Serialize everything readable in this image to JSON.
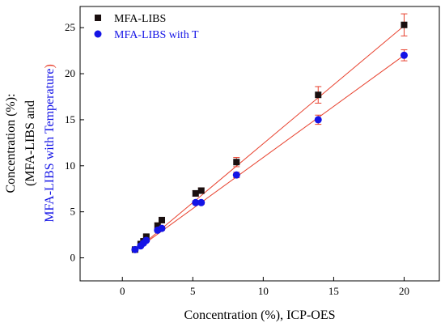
{
  "chart_data": {
    "type": "scatter",
    "xlabel": "Concentration (%), ICP-OES",
    "ylabel_lines": [
      "Concentration (%):",
      "(MFA-LIBS and",
      "MFA-LIBS with Temperature)"
    ],
    "xlim": [
      -3,
      22.5
    ],
    "ylim": [
      -2.5,
      27.3
    ],
    "xticks": [
      0,
      5,
      10,
      15,
      20
    ],
    "yticks": [
      0,
      5,
      10,
      15,
      20,
      25
    ],
    "grid": false,
    "legend": "top-left",
    "series": [
      {
        "name": "MFA-LIBS",
        "marker": "square",
        "color": "#1a0f0f",
        "x": [
          0.9,
          1.3,
          1.5,
          1.7,
          2.5,
          2.8,
          5.2,
          5.6,
          8.1,
          13.9,
          20.0
        ],
        "y": [
          0.9,
          1.5,
          1.8,
          2.3,
          3.5,
          4.1,
          7.0,
          7.3,
          10.4,
          17.7,
          25.3
        ],
        "err": [
          0.15,
          0.15,
          0.2,
          0.2,
          0.3,
          0.3,
          0.3,
          0.3,
          0.5,
          0.9,
          1.2
        ],
        "fit_color": "#e8422f",
        "fit_x": [
          0.9,
          20.0
        ],
        "fit_y": [
          0.75,
          25.2
        ]
      },
      {
        "name": "MFA-LIBS with T",
        "marker": "circle",
        "color": "#1414e6",
        "x": [
          0.9,
          1.3,
          1.5,
          1.7,
          2.5,
          2.8,
          5.2,
          5.6,
          8.1,
          13.9,
          20.0
        ],
        "y": [
          0.9,
          1.3,
          1.6,
          1.9,
          3.0,
          3.2,
          6.0,
          6.0,
          9.0,
          15.0,
          22.0
        ],
        "err": [
          0.1,
          0.1,
          0.15,
          0.15,
          0.2,
          0.2,
          0.2,
          0.2,
          0.3,
          0.5,
          0.6
        ],
        "fit_color": "#e8422f",
        "fit_x": [
          0.9,
          20.0
        ],
        "fit_y": [
          0.8,
          22.0
        ]
      }
    ]
  },
  "colors": {
    "errorbar": "#e8422f",
    "ylabel_blue": "#1414e6",
    "ylabel_red": "#e8422f"
  }
}
